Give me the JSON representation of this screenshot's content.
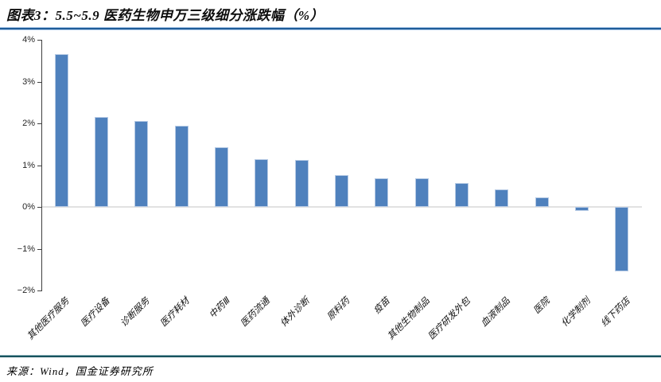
{
  "title": "图表3：5.5~5.9 医药生物申万三级细分涨跌幅（%）",
  "source": "来源：Wind，国金证券研究所",
  "colors": {
    "bar_fill": "#4f81bd",
    "bar_border": "#b7cbe5",
    "title_rule": "#1f5c99",
    "footer_rule": "#19545f",
    "axis": "#404040",
    "zero_line": "#e2e2e2"
  },
  "chart_data": {
    "type": "bar",
    "title": "图表3：5.5~5.9 医药生物申万三级细分涨跌幅（%）",
    "xlabel": "",
    "ylabel": "",
    "categories": [
      "其他医疗服务",
      "医疗设备",
      "诊断服务",
      "医疗耗材",
      "中药Ⅲ",
      "医药流通",
      "体外诊断",
      "原料药",
      "疫苗",
      "其他生物制品",
      "医疗研发外包",
      "血液制品",
      "医院",
      "化学制剂",
      "线下药店"
    ],
    "values": [
      3.65,
      2.15,
      2.06,
      1.95,
      1.42,
      1.15,
      1.12,
      0.77,
      0.68,
      0.69,
      0.58,
      0.42,
      0.22,
      -0.1,
      -1.55
    ],
    "ylim": [
      -2,
      4
    ],
    "ytick_step": 1,
    "ytick_labels": [
      "4%",
      "3%",
      "2%",
      "1%",
      "0%",
      "−1%",
      "−2%"
    ],
    "grid": false,
    "legend": "none",
    "bar_color": "#4f81bd"
  }
}
